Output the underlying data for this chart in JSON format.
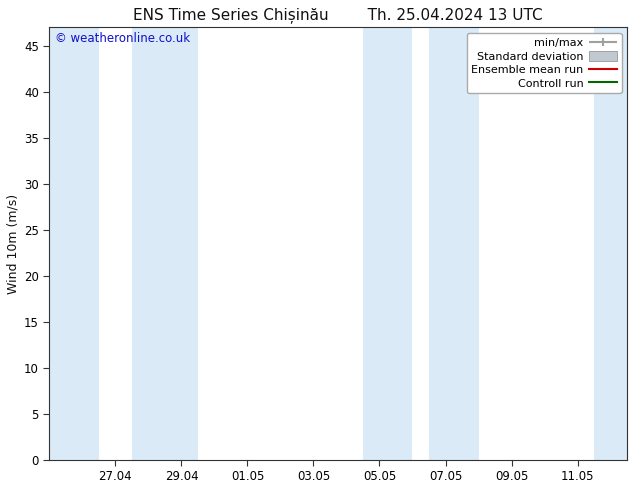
{
  "title": "ENS Time Series Chișinău        Th. 25.04.2024 13 UTC",
  "ylabel": "Wind 10m (m/s)",
  "watermark": "© weatheronline.co.uk",
  "ylim": [
    0,
    47
  ],
  "yticks": [
    0,
    5,
    10,
    15,
    20,
    25,
    30,
    35,
    40,
    45
  ],
  "background_color": "#ffffff",
  "plot_bg_color": "#ffffff",
  "shade_color": "#daeaf7",
  "xtick_labels": [
    "27.04",
    "29.04",
    "01.05",
    "03.05",
    "05.05",
    "07.05",
    "09.05",
    "11.05"
  ],
  "title_fontsize": 11,
  "tick_fontsize": 8.5,
  "legend_fontsize": 8,
  "watermark_fontsize": 8.5,
  "minmax_color": "#a0a0a0",
  "std_color": "#c0c8d0",
  "ens_color": "#cc0000",
  "ctrl_color": "#006600",
  "shade_bands": [
    [
      0.0,
      1.5
    ],
    [
      2.5,
      4.5
    ],
    [
      9.5,
      11.0
    ],
    [
      11.5,
      13.0
    ],
    [
      16.5,
      17.5
    ]
  ],
  "xtick_positions": [
    2,
    4,
    6,
    8,
    10,
    12,
    14,
    16
  ],
  "xlim": [
    0,
    17.5
  ]
}
